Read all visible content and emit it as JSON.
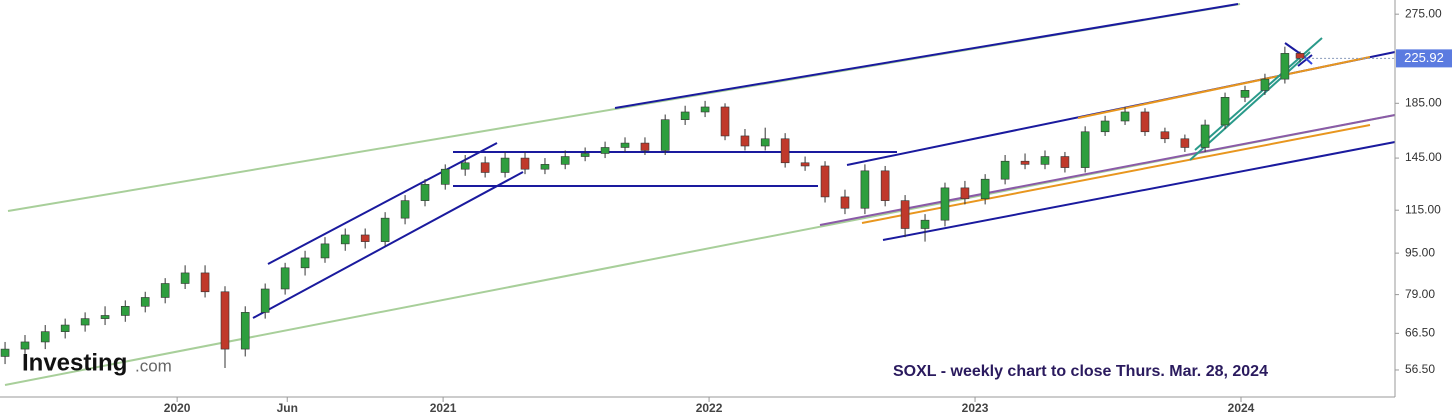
{
  "chart_data": {
    "type": "candlestick",
    "log_scale": true,
    "annotation": "SOXL - weekly chart to close Thurs. Mar. 28, 2024",
    "x": [
      2019.353,
      2019.428,
      2019.504,
      2019.579,
      2019.654,
      2019.729,
      2019.805,
      2019.88,
      2019.955,
      2020.03,
      2020.105,
      2020.18,
      2020.256,
      2020.331,
      2020.406,
      2020.481,
      2020.556,
      2020.632,
      2020.707,
      2020.782,
      2020.857,
      2020.932,
      2021.008,
      2021.083,
      2021.158,
      2021.233,
      2021.308,
      2021.383,
      2021.459,
      2021.534,
      2021.609,
      2021.684,
      2021.759,
      2021.835,
      2021.91,
      2021.985,
      2022.06,
      2022.135,
      2022.211,
      2022.286,
      2022.361,
      2022.436,
      2022.511,
      2022.586,
      2022.662,
      2022.737,
      2022.812,
      2022.887,
      2022.962,
      2023.038,
      2023.113,
      2023.188,
      2023.263,
      2023.338,
      2023.414,
      2023.489,
      2023.564,
      2023.639,
      2023.714,
      2023.789,
      2023.865,
      2023.94,
      2024.015,
      2024.09,
      2024.165,
      2024.222
    ],
    "open": [
      60,
      62,
      64,
      67,
      69,
      71,
      72,
      75,
      78,
      83,
      87,
      80,
      62,
      73,
      81,
      89,
      93,
      99,
      103,
      100,
      111,
      120,
      129,
      138,
      142,
      136,
      145,
      138,
      141,
      146,
      148,
      152,
      155,
      150,
      172,
      178,
      182,
      160,
      153,
      158,
      142,
      140,
      122,
      116,
      137,
      120,
      106,
      110,
      127,
      121,
      132,
      143,
      141,
      146,
      139,
      163,
      171,
      178,
      163,
      158,
      152,
      168,
      190,
      196,
      206,
      231
    ],
    "high": [
      64,
      66,
      69,
      71,
      73,
      75,
      77,
      80,
      85,
      90,
      90,
      82,
      75,
      83,
      91,
      96,
      102,
      106,
      106,
      114,
      123,
      132,
      141,
      147,
      146,
      149,
      149,
      145,
      150,
      152,
      156,
      159,
      159,
      176,
      183,
      187,
      185,
      165,
      166,
      162,
      146,
      143,
      126,
      141,
      140,
      123,
      113,
      130,
      131,
      135,
      147,
      148,
      150,
      149,
      167,
      175,
      182,
      181,
      166,
      161,
      172,
      194,
      200,
      211,
      238,
      233
    ],
    "low": [
      58,
      60,
      62,
      65,
      67,
      69,
      70,
      73,
      76,
      81,
      78,
      57,
      60,
      71,
      79,
      86,
      91,
      96,
      97,
      98,
      108,
      117,
      126,
      134,
      133,
      133,
      135,
      135,
      138,
      143,
      145,
      149,
      147,
      147,
      168,
      174,
      157,
      150,
      150,
      139,
      137,
      119,
      113,
      113,
      117,
      102,
      100,
      107,
      118,
      118,
      129,
      138,
      138,
      136,
      136,
      160,
      168,
      160,
      155,
      149,
      149,
      165,
      186,
      192,
      202,
      222
    ],
    "close": [
      62,
      64,
      67,
      69,
      71,
      72,
      75,
      78,
      83,
      87,
      80,
      62,
      73,
      81,
      89,
      93,
      99,
      103,
      100,
      111,
      120,
      129,
      138,
      142,
      136,
      145,
      138,
      141,
      146,
      148,
      152,
      155,
      150,
      172,
      178,
      182,
      160,
      153,
      158,
      142,
      140,
      122,
      116,
      137,
      120,
      106,
      110,
      127,
      121,
      132,
      143,
      141,
      146,
      139,
      163,
      171,
      178,
      163,
      158,
      152,
      168,
      190,
      196,
      206,
      231,
      225.92
    ],
    "up_color": "#2e9e3e",
    "down_color": "#c0392b",
    "ylim": [
      50.1,
      292.9
    ],
    "yticks": [
      {
        "value": 56.5,
        "label": "56.50"
      },
      {
        "value": 66.5,
        "label": "66.50"
      },
      {
        "value": 79,
        "label": "79.00"
      },
      {
        "value": 95,
        "label": "95.00"
      },
      {
        "value": 115,
        "label": "115.00"
      },
      {
        "value": 145,
        "label": "145.00"
      },
      {
        "value": 185,
        "label": "185.00"
      },
      {
        "value": 275,
        "label": "275.00"
      }
    ],
    "last_price": 225.92,
    "last_price_color": "#5b7be0",
    "xlim": [
      2019.334,
      2024.579
    ],
    "xticks": [
      {
        "value": 2020,
        "label": "2020"
      },
      {
        "value": 2020.414,
        "label": "Jun"
      },
      {
        "value": 2021,
        "label": "2021"
      },
      {
        "value": 2022,
        "label": "2022"
      },
      {
        "value": 2023,
        "label": "2023"
      },
      {
        "value": 2024,
        "label": "2024"
      }
    ]
  },
  "logo": {
    "name": "Investing",
    "suffix": ".com"
  }
}
